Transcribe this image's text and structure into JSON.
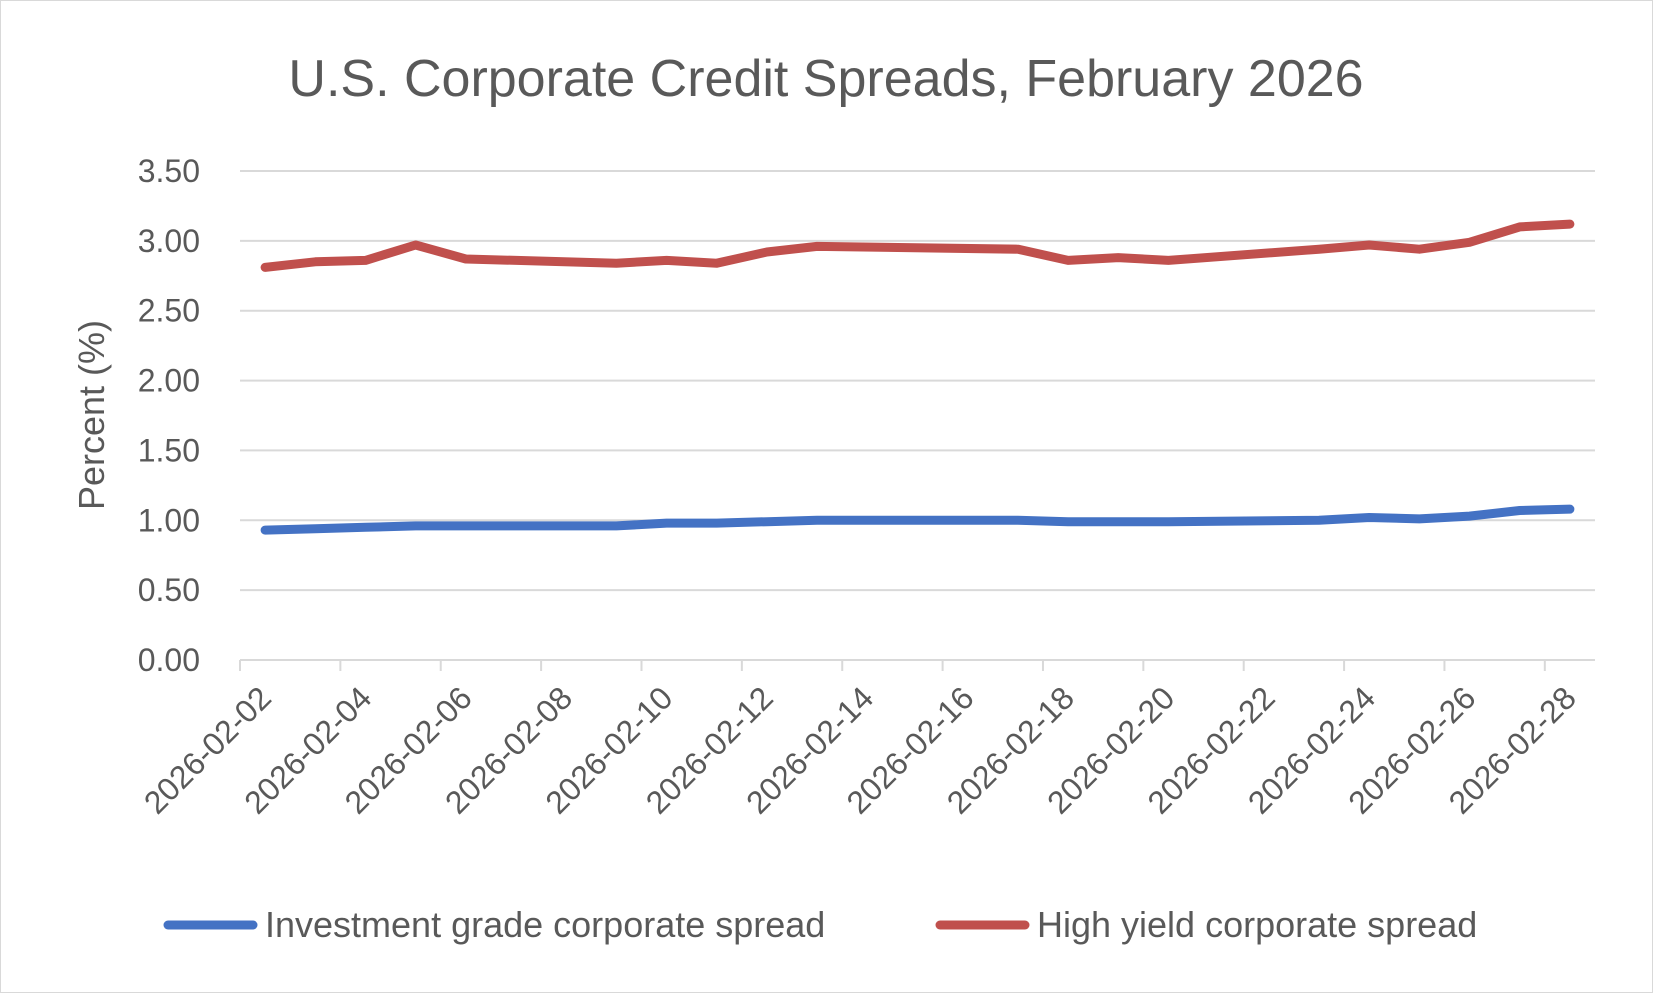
{
  "chart_data": {
    "type": "line",
    "title": "U.S. Corporate Credit Spreads, February 2026",
    "xlabel": "",
    "ylabel": "Percent (%)",
    "ylim": [
      0,
      3.5
    ],
    "yticks": [
      "0.00",
      "0.50",
      "1.00",
      "1.50",
      "2.00",
      "2.50",
      "3.00",
      "3.50"
    ],
    "xlim": [
      "2026-02-02",
      "2026-02-28"
    ],
    "xticks": [
      "2026-02-02",
      "2026-02-04",
      "2026-02-06",
      "2026-02-08",
      "2026-02-10",
      "2026-02-12",
      "2026-02-14",
      "2026-02-16",
      "2026-02-18",
      "2026-02-20",
      "2026-02-22",
      "2026-02-24",
      "2026-02-26",
      "2026-02-28"
    ],
    "x": [
      "2026-02-02",
      "2026-02-03",
      "2026-02-04",
      "2026-02-05",
      "2026-02-06",
      "2026-02-09",
      "2026-02-10",
      "2026-02-11",
      "2026-02-12",
      "2026-02-13",
      "2026-02-17",
      "2026-02-18",
      "2026-02-19",
      "2026-02-20",
      "2026-02-23",
      "2026-02-24",
      "2026-02-25",
      "2026-02-26",
      "2026-02-27",
      "2026-02-28"
    ],
    "series": [
      {
        "name": "Investment grade corporate spread",
        "color": "#4472c4",
        "values": [
          0.93,
          0.94,
          0.95,
          0.96,
          0.96,
          0.96,
          0.98,
          0.98,
          0.99,
          1.0,
          1.0,
          0.99,
          0.99,
          0.99,
          1.0,
          1.02,
          1.01,
          1.03,
          1.07,
          1.08
        ]
      },
      {
        "name": "High yield corporate spread",
        "color": "#c0504d",
        "values": [
          2.81,
          2.85,
          2.86,
          2.97,
          2.87,
          2.84,
          2.86,
          2.84,
          2.92,
          2.96,
          2.94,
          2.86,
          2.88,
          2.86,
          2.94,
          2.97,
          2.94,
          2.99,
          3.1,
          3.12
        ]
      }
    ],
    "grid": true,
    "legend": "bottom"
  }
}
